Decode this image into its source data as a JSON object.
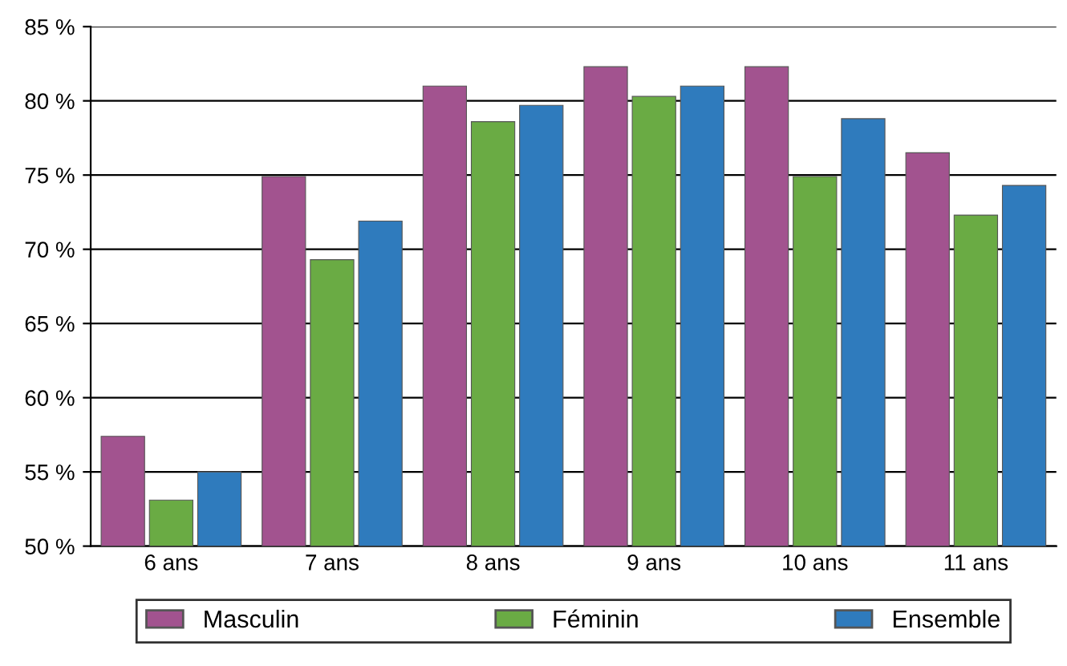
{
  "chart_data": {
    "type": "bar",
    "categories": [
      "6 ans",
      "7 ans",
      "8 ans",
      "9 ans",
      "10 ans",
      "11 ans"
    ],
    "series": [
      {
        "name": "Masculin",
        "color": "#a2538f",
        "values": [
          57.4,
          74.9,
          81.0,
          82.3,
          82.3,
          76.5
        ]
      },
      {
        "name": "Féminin",
        "color": "#6aab44",
        "values": [
          53.1,
          69.3,
          78.6,
          80.3,
          74.9,
          72.3
        ]
      },
      {
        "name": "Ensemble",
        "color": "#2f7bbd",
        "values": [
          55.0,
          71.9,
          79.7,
          81.0,
          78.8,
          74.3
        ]
      }
    ],
    "ylim": [
      50,
      85
    ],
    "yticks": [
      {
        "value": 50,
        "label": "50 %"
      },
      {
        "value": 55,
        "label": "55 %"
      },
      {
        "value": 60,
        "label": "60 %"
      },
      {
        "value": 65,
        "label": "65 %"
      },
      {
        "value": 70,
        "label": "70 %"
      },
      {
        "value": 75,
        "label": "75 %"
      },
      {
        "value": 80,
        "label": "80 %"
      },
      {
        "value": 85,
        "label": "85 %"
      }
    ],
    "grid": "y",
    "legend": "bottom"
  }
}
